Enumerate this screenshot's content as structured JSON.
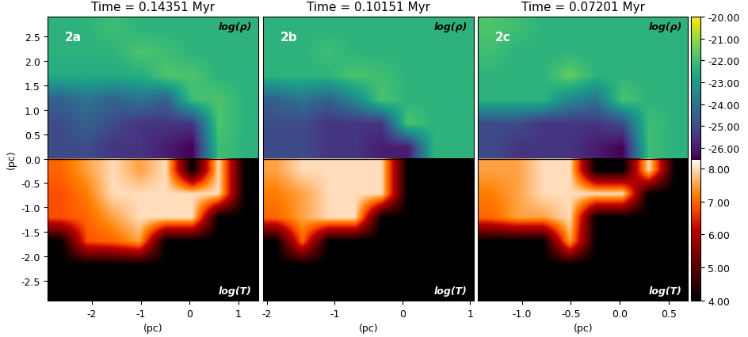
{
  "chart_data": [
    {
      "type": "heatmap",
      "title": "Time = 0.14351 Myr",
      "panel_label": "2a",
      "xlabel": "(pc)",
      "ylabel": "(pc)",
      "xlim": [
        -2.9,
        1.4
      ],
      "xticks": [
        -2,
        -1,
        0,
        1
      ],
      "ylim": [
        -2.9,
        2.9
      ],
      "yticks": [
        -2.5,
        -2.0,
        -1.5,
        -1.0,
        -0.5,
        {
          "value": 0,
          "label": "0.0"
        },
        0.5,
        1.0,
        1.5,
        2.0,
        2.5
      ],
      "density": {
        "label": "log(ρ)",
        "cells": [
          [
            -22.3,
            -22.3,
            -22.0,
            -22.3,
            -22.3,
            -22.3,
            -22.3,
            -22.3
          ],
          [
            -22.3,
            -22.3,
            -22.3,
            -21.8,
            -22.0,
            -22.3,
            -22.3,
            -22.3
          ],
          [
            -22.5,
            -22.5,
            -22.5,
            -22.5,
            -21.8,
            -21.8,
            -22.3,
            -22.3
          ],
          [
            -24.5,
            -24.0,
            -24.5,
            -24.0,
            -24.5,
            -22.0,
            -21.8,
            -22.3
          ],
          [
            -25.0,
            -24.5,
            -25.0,
            -25.5,
            -25.5,
            -25.5,
            -21.8,
            -22.3
          ],
          [
            -25.0,
            -25.0,
            -25.5,
            -25.5,
            -26.0,
            -26.5,
            -22.0,
            -22.3
          ]
        ]
      },
      "temperature": {
        "label": "log(T)",
        "cells": [
          [
            7.0,
            7.5,
            8.0,
            7.5,
            8.0,
            4.0,
            8.0,
            4.0
          ],
          [
            6.8,
            7.2,
            8.0,
            8.0,
            8.0,
            8.0,
            8.0,
            4.0
          ],
          [
            6.8,
            7.0,
            7.5,
            8.0,
            8.0,
            8.0,
            4.0,
            4.0
          ],
          [
            4.0,
            6.8,
            7.0,
            7.5,
            4.0,
            4.0,
            4.0,
            4.0
          ],
          [
            4.0,
            4.0,
            4.0,
            4.0,
            4.0,
            4.0,
            4.0,
            4.0
          ],
          [
            4.0,
            4.0,
            4.0,
            4.0,
            4.0,
            4.0,
            4.0,
            4.0
          ]
        ]
      }
    },
    {
      "type": "heatmap",
      "title": "Time = 0.10151 Myr",
      "panel_label": "2b",
      "xlabel": "(pc)",
      "tick_labels": "x",
      "xlim": [
        -2.05,
        1.05
      ],
      "xticks": [
        -2,
        -1,
        0,
        1
      ],
      "ylim": [
        -2.9,
        2.9
      ],
      "density": {
        "label": "log(ρ)",
        "cells": [
          [
            -22.3,
            -22.3,
            -22.3,
            -22.3,
            -22.3,
            -22.3,
            -22.3,
            -22.3
          ],
          [
            -22.3,
            -22.3,
            -22.0,
            -22.3,
            -22.3,
            -22.3,
            -22.3,
            -22.3
          ],
          [
            -22.3,
            -22.3,
            -22.3,
            -21.8,
            -22.0,
            -22.3,
            -22.3,
            -22.3
          ],
          [
            -24.5,
            -24.0,
            -24.5,
            -23.5,
            -21.8,
            -22.3,
            -22.3,
            -22.3
          ],
          [
            -25.0,
            -25.0,
            -25.5,
            -25.5,
            -25.5,
            -21.8,
            -22.3,
            -22.3
          ],
          [
            -25.0,
            -25.0,
            -25.5,
            -25.5,
            -26.0,
            -26.0,
            -22.3,
            -22.3
          ]
        ]
      },
      "temperature": {
        "label": "log(T)",
        "cells": [
          [
            7.5,
            8.0,
            8.0,
            8.0,
            8.0,
            4.0,
            4.0,
            4.0
          ],
          [
            7.2,
            7.5,
            8.0,
            8.0,
            8.0,
            4.0,
            4.0,
            4.0
          ],
          [
            7.0,
            7.5,
            8.0,
            8.0,
            4.0,
            4.0,
            4.0,
            4.0
          ],
          [
            4.0,
            7.0,
            4.0,
            4.0,
            4.0,
            4.0,
            4.0,
            4.0
          ],
          [
            4.0,
            4.0,
            4.0,
            4.0,
            4.0,
            4.0,
            4.0,
            4.0
          ],
          [
            4.0,
            4.0,
            4.0,
            4.0,
            4.0,
            4.0,
            4.0,
            4.0
          ]
        ]
      }
    },
    {
      "type": "heatmap",
      "title": "Time = 0.07201 Myr",
      "panel_label": "2c",
      "xlabel": "(pc)",
      "tick_labels": "x",
      "xlim": [
        -1.45,
        0.7
      ],
      "xticks": [
        -1.0,
        -0.5,
        0.0,
        0.5
      ],
      "ylim": [
        -2.9,
        2.9
      ],
      "density": {
        "label": "log(ρ)",
        "cells": [
          [
            -21.8,
            -22.0,
            -22.3,
            -22.3,
            -22.3,
            -22.3,
            -22.3,
            -22.3
          ],
          [
            -22.0,
            -22.3,
            -22.3,
            -22.3,
            -22.3,
            -22.3,
            -22.3,
            -22.3
          ],
          [
            -22.3,
            -22.3,
            -22.3,
            -21.5,
            -22.3,
            -22.3,
            -22.3,
            -22.3
          ],
          [
            -22.3,
            -22.3,
            -22.3,
            -23.5,
            -24.0,
            -21.8,
            -22.3,
            -22.3
          ],
          [
            -25.0,
            -25.0,
            -25.5,
            -25.5,
            -25.5,
            -25.0,
            -22.0,
            -22.3
          ],
          [
            -25.0,
            -25.5,
            -25.5,
            -25.5,
            -26.0,
            -26.5,
            -22.0,
            -22.3
          ]
        ]
      },
      "temperature": {
        "label": "log(T)",
        "cells": [
          [
            7.5,
            7.5,
            8.0,
            8.0,
            4.0,
            4.0,
            8.0,
            4.0
          ],
          [
            7.2,
            7.5,
            8.0,
            8.0,
            8.0,
            8.0,
            4.0,
            4.0
          ],
          [
            7.0,
            7.5,
            7.5,
            8.0,
            4.0,
            4.0,
            4.0,
            4.0
          ],
          [
            4.0,
            4.0,
            4.0,
            7.5,
            4.0,
            4.0,
            4.0,
            4.0
          ],
          [
            4.0,
            4.0,
            4.0,
            4.0,
            4.0,
            4.0,
            4.0,
            4.0
          ],
          [
            4.0,
            4.0,
            4.0,
            4.0,
            4.0,
            4.0,
            4.0,
            4.0
          ]
        ]
      }
    }
  ],
  "colorbars": {
    "density": {
      "range": [
        -26.5,
        -20.0
      ],
      "ticks": [
        {
          "value": -26,
          "label": "-26.00"
        },
        {
          "value": -25,
          "label": "-25.00"
        },
        {
          "value": -24,
          "label": "-24.00"
        },
        {
          "value": -23,
          "label": "-23.00"
        },
        {
          "value": -22,
          "label": "-22.00"
        },
        {
          "value": -21,
          "label": "-21.00"
        },
        {
          "value": -20,
          "label": "-20.00"
        }
      ]
    },
    "temperature": {
      "range": [
        4.0,
        8.3
      ],
      "ticks": [
        {
          "value": 4,
          "label": "4.00"
        },
        {
          "value": 5,
          "label": "5.00"
        },
        {
          "value": 6,
          "label": "6.00"
        },
        {
          "value": 7,
          "label": "7.00"
        },
        {
          "value": 8,
          "label": "8.00"
        }
      ]
    }
  }
}
